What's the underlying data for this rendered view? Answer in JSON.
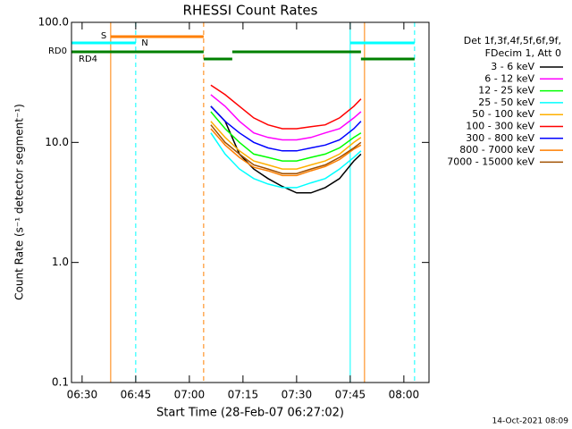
{
  "chart_data": {
    "type": "line",
    "title": "RHESSI Count Rates",
    "xlabel": "Start Time (28-Feb-07 06:27:02)",
    "ylabel": "Count Rate (s⁻¹ detector segment⁻¹)",
    "footer": "14-Oct-2021 08:09",
    "legend_header": [
      "Det 1f,3f,4f,5f,6f,9f,",
      "FDecim 1, Att 0"
    ],
    "log_y": true,
    "xlim": [
      "06:27:02",
      "08:07:02"
    ],
    "xticks": [
      "06:30",
      "06:45",
      "07:00",
      "07:15",
      "07:30",
      "07:45",
      "08:00"
    ],
    "ylim": [
      0.1,
      100
    ],
    "yticks": [
      0.1,
      {
        "value": 1,
        "label": "1.0"
      },
      {
        "value": 10,
        "label": "10.0"
      },
      {
        "value": 100,
        "label": "100.0"
      }
    ],
    "x": [
      "07:06",
      "07:10",
      "07:14",
      "07:18",
      "07:22",
      "07:26",
      "07:30",
      "07:34",
      "07:38",
      "07:42",
      "07:46",
      "07:48"
    ],
    "series": [
      {
        "name": "3 - 6 keV",
        "color": "#000000",
        "values": [
          20,
          15,
          8,
          6,
          5,
          4.3,
          3.8,
          3.8,
          4.2,
          5,
          7,
          8
        ]
      },
      {
        "name": "6 - 12 keV",
        "color": "#ff00ff",
        "values": [
          25,
          20,
          15,
          12,
          11,
          10.5,
          10.5,
          11,
          12,
          13,
          16,
          18
        ]
      },
      {
        "name": "12 - 25 keV",
        "color": "#00ff00",
        "values": [
          18,
          13,
          10,
          8,
          7.5,
          7,
          7,
          7.5,
          8,
          9,
          11,
          12
        ]
      },
      {
        "name": "25 - 50 keV",
        "color": "#00ffff",
        "values": [
          12,
          8,
          6,
          5,
          4.5,
          4.2,
          4.2,
          4.6,
          5,
          6,
          7.5,
          8.5
        ]
      },
      {
        "name": "50 - 100 keV",
        "color": "#ffb000",
        "values": [
          15,
          11,
          8.5,
          7,
          6.5,
          6,
          6,
          6.5,
          7,
          8,
          10,
          11
        ]
      },
      {
        "name": "100 - 300 keV",
        "color": "#ff0000",
        "values": [
          30,
          25,
          20,
          16,
          14,
          13,
          13,
          13.5,
          14,
          16,
          20,
          23
        ]
      },
      {
        "name": "300 - 800 keV",
        "color": "#0000ff",
        "values": [
          20,
          15,
          12,
          10,
          9,
          8.5,
          8.5,
          9,
          9.5,
          10.5,
          13,
          15
        ]
      },
      {
        "name": "800 - 7000 keV",
        "color": "#ff7f00",
        "values": [
          13,
          9.5,
          7.5,
          6.2,
          5.8,
          5.3,
          5.3,
          5.8,
          6.3,
          7.2,
          8.8,
          9.5
        ]
      },
      {
        "name": "7000 - 15000 keV",
        "color": "#a05000",
        "values": [
          14,
          10,
          8,
          6.5,
          6,
          5.5,
          5.5,
          6,
          6.5,
          7.5,
          9,
          10
        ]
      }
    ],
    "flags": [
      {
        "label": "S",
        "color": "#ff7f00",
        "segments": [
          [
            "06:38",
            "07:04"
          ]
        ]
      },
      {
        "label": "N",
        "color": "#00ffff",
        "segments": [
          [
            "06:27:02",
            "06:45"
          ],
          [
            "07:45",
            "08:03"
          ]
        ]
      },
      {
        "label": "RD0",
        "color": "#008000",
        "segments": [
          [
            "06:27:02",
            "07:04"
          ],
          [
            "07:12",
            "07:48"
          ]
        ]
      },
      {
        "label": "RD4",
        "color": "#008000",
        "segments": [
          [
            "07:04",
            "07:12"
          ],
          [
            "07:48",
            "08:03"
          ]
        ]
      }
    ],
    "vlines": [
      {
        "x": "06:38",
        "color": "#ff7f00",
        "dashed": false
      },
      {
        "x": "07:04",
        "color": "#ff7f00",
        "dashed": true
      },
      {
        "x": "07:49",
        "color": "#ff7f00",
        "dashed": false
      },
      {
        "x": "06:27:02",
        "color": "#00ffff",
        "dashed": false
      },
      {
        "x": "06:45",
        "color": "#00ffff",
        "dashed": true
      },
      {
        "x": "07:45",
        "color": "#00ffff",
        "dashed": false
      },
      {
        "x": "08:03",
        "color": "#00ffff",
        "dashed": true
      }
    ]
  }
}
